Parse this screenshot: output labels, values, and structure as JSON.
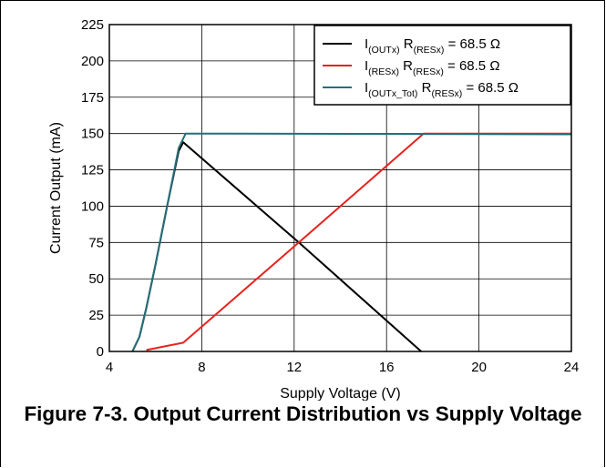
{
  "caption": "Figure 7-3. Output Current Distribution vs Supply Voltage",
  "chart_data": {
    "type": "line",
    "xlabel": "Supply Voltage (V)",
    "ylabel": "Current Output (mA)",
    "xlim": [
      4,
      24
    ],
    "ylim": [
      0,
      225
    ],
    "x_ticks": [
      4,
      8,
      12,
      16,
      20,
      24
    ],
    "y_ticks": [
      0,
      25,
      50,
      75,
      100,
      125,
      150,
      175,
      200,
      225
    ],
    "grid": true,
    "legend_position": "top-right",
    "series": [
      {
        "name": "I(OUTx) R(RESx) = 68.5 Ω",
        "label": {
          "main": "I",
          "sub": "(OUTx)",
          "mid": " R",
          "sub2": "(RESx)",
          "tail": " = 68.5 Ω"
        },
        "color": "#000000",
        "points": [
          [
            5.0,
            0
          ],
          [
            5.3,
            10
          ],
          [
            5.6,
            30
          ],
          [
            6.0,
            60
          ],
          [
            6.5,
            100
          ],
          [
            7.0,
            138
          ],
          [
            7.2,
            144
          ],
          [
            12.2,
            75
          ],
          [
            17.5,
            0
          ]
        ]
      },
      {
        "name": "I(RESx) R(RESx) = 68.5 Ω",
        "label": {
          "main": "I",
          "sub": "(RESx)",
          "mid": " R",
          "sub2": "(RESx)",
          "tail": " = 68.5 Ω"
        },
        "color": "#e8211d",
        "points": [
          [
            5.6,
            1
          ],
          [
            7.2,
            6
          ],
          [
            12.2,
            75
          ],
          [
            17.6,
            150
          ],
          [
            24,
            150
          ]
        ]
      },
      {
        "name": "I(OUTx_Tot) R(RESx) = 68.5 Ω",
        "label": {
          "main": "I",
          "sub": "(OUTx_Tot)",
          "mid": " R",
          "sub2": "(RESx)",
          "tail": " = 68.5 Ω"
        },
        "color": "#256e79",
        "points": [
          [
            5.0,
            0
          ],
          [
            5.3,
            10
          ],
          [
            5.6,
            30
          ],
          [
            6.0,
            60
          ],
          [
            6.5,
            100
          ],
          [
            7.0,
            140
          ],
          [
            7.3,
            150
          ],
          [
            24,
            149.5
          ]
        ]
      }
    ]
  }
}
